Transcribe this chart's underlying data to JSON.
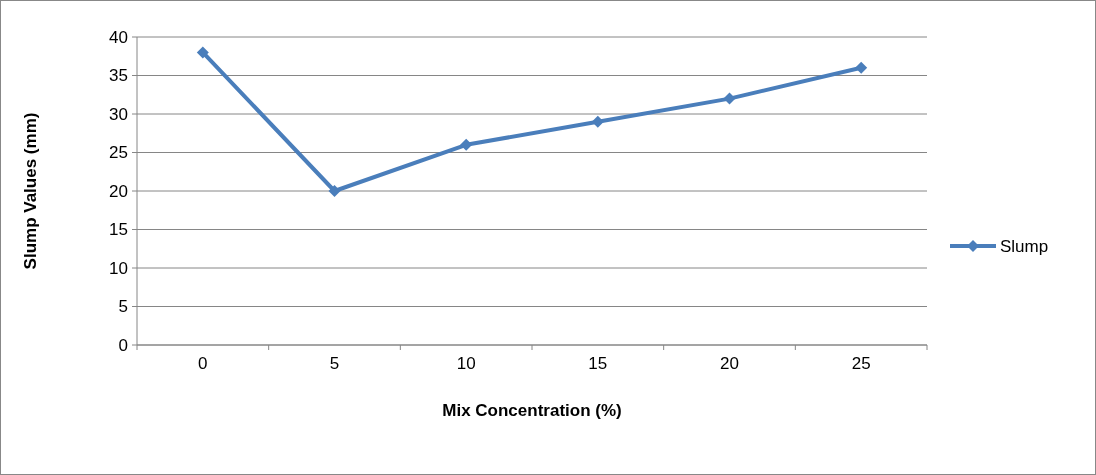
{
  "chart_data": {
    "type": "line",
    "xlabel": "Mix Concentration (%)",
    "ylabel": "Slump Values (mm)",
    "categories": [
      "0",
      "5",
      "10",
      "15",
      "20",
      "25"
    ],
    "series": [
      {
        "name": "Slump",
        "color": "#4a7ebb",
        "values": [
          38,
          20,
          26,
          29,
          32,
          36
        ]
      }
    ],
    "ylim": [
      0,
      40
    ],
    "yticks": [
      0,
      5,
      10,
      15,
      20,
      25,
      30,
      35,
      40
    ],
    "grid": "y",
    "legend": "right",
    "marker": "diamond",
    "line_style": "solid"
  }
}
